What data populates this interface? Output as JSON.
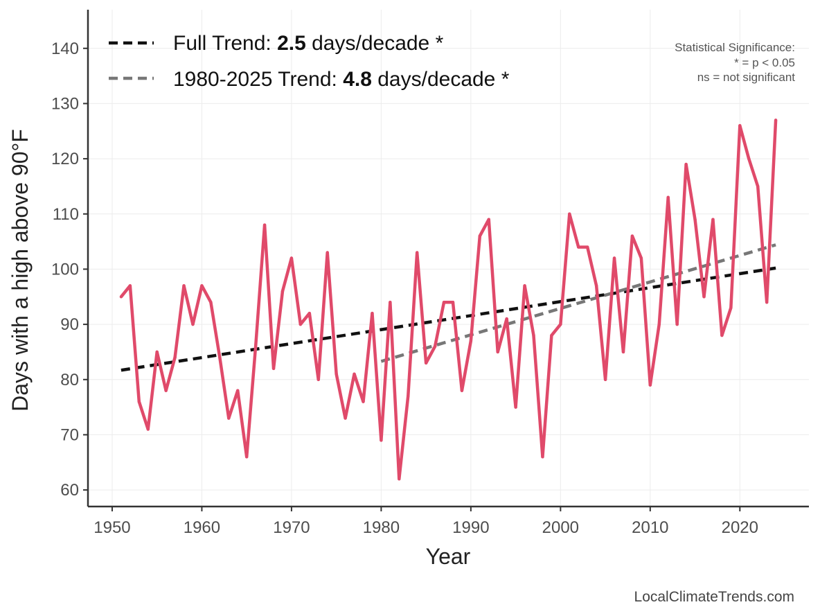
{
  "chart_data": {
    "type": "line",
    "xlabel": "Year",
    "ylabel": "Days with a high above 90°F",
    "xlim": [
      1947.3,
      2027.7
    ],
    "ylim": [
      57,
      147
    ],
    "x_ticks": [
      1950,
      1960,
      1970,
      1980,
      1990,
      2000,
      2010,
      2020
    ],
    "y_ticks": [
      60,
      70,
      80,
      90,
      100,
      110,
      120,
      130,
      140
    ],
    "grid": true,
    "legend_position": "top-left",
    "series": [
      {
        "color": "#e04a6a",
        "x": [
          1951,
          1952,
          1953,
          1954,
          1955,
          1956,
          1957,
          1958,
          1959,
          1960,
          1961,
          1962,
          1963,
          1964,
          1965,
          1966,
          1967,
          1968,
          1969,
          1970,
          1971,
          1972,
          1973,
          1974,
          1975,
          1976,
          1977,
          1978,
          1979,
          1980,
          1981,
          1982,
          1983,
          1984,
          1985,
          1986,
          1987,
          1988,
          1989,
          1990,
          1991,
          1992,
          1993,
          1994,
          1995,
          1996,
          1997,
          1998,
          1999,
          2000,
          2001,
          2002,
          2003,
          2004,
          2005,
          2006,
          2007,
          2008,
          2009,
          2010,
          2011,
          2012,
          2013,
          2014,
          2015,
          2016,
          2017,
          2018,
          2019,
          2020,
          2021,
          2022,
          2023,
          2024
        ],
        "values": [
          95,
          97,
          76,
          71,
          85,
          78,
          84,
          97,
          90,
          97,
          94,
          84,
          73,
          78,
          66,
          86,
          108,
          82,
          96,
          102,
          90,
          92,
          80,
          103,
          81,
          73,
          81,
          76,
          92,
          69,
          94,
          62,
          77,
          103,
          83,
          86,
          94,
          94,
          78,
          87,
          106,
          109,
          85,
          91,
          75,
          97,
          88,
          66,
          88,
          90,
          110,
          104,
          104,
          97,
          80,
          102,
          85,
          106,
          102,
          79,
          90,
          113,
          90,
          119,
          109,
          95,
          109,
          88,
          93,
          126,
          120,
          115,
          94,
          127
        ]
      }
    ],
    "trend_lines": [
      {
        "label_prefix": "Full Trend: ",
        "label_value": "2.5",
        "label_suffix": " days/decade *",
        "color": "#111111",
        "x": [
          1951,
          2024
        ],
        "values": [
          81.7,
          100.2
        ]
      },
      {
        "label_prefix": "1980-2025 Trend: ",
        "label_value": "4.8",
        "label_suffix": " days/decade *",
        "color": "#777777",
        "x": [
          1980,
          2024
        ],
        "values": [
          83.3,
          104.4
        ]
      }
    ],
    "annotation": {
      "lines": [
        "Statistical Significance:",
        "* = p < 0.05",
        "ns = not significant"
      ]
    },
    "credit": "LocalClimateTrends.com"
  }
}
